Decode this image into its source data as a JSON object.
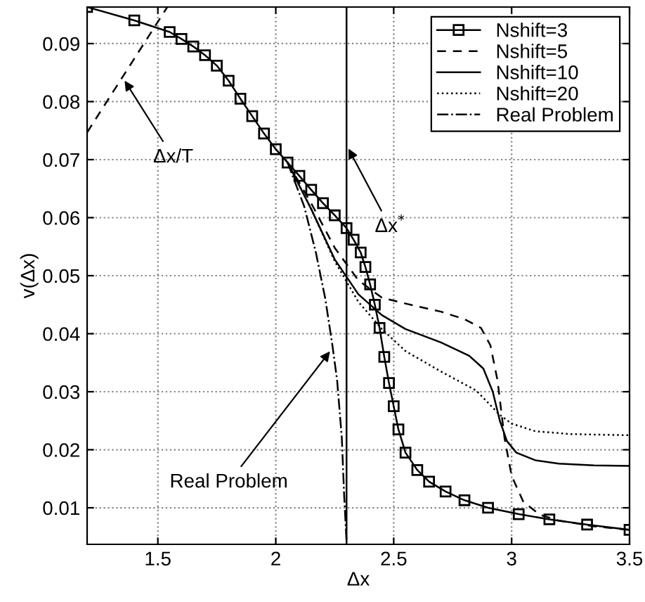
{
  "chart_data": {
    "type": "line",
    "xlabel": "Δx",
    "ylabel": "v(Δx)",
    "xlim": [
      1.2,
      3.5
    ],
    "ylim": [
      0.0037,
      0.0963
    ],
    "xticks": [
      1.5,
      2,
      2.5,
      3,
      3.5
    ],
    "yticks": [
      0.01,
      0.02,
      0.03,
      0.04,
      0.05,
      0.06,
      0.07,
      0.08,
      0.09
    ],
    "grid": true,
    "legend": "top right",
    "series": [
      {
        "name": "Nshift=3",
        "color": "#000000",
        "marker": "square",
        "line_style": "solid",
        "x": [
          1.2,
          1.4,
          1.55,
          1.6,
          1.65,
          1.7,
          1.75,
          1.8,
          1.85,
          1.9,
          1.95,
          2.0,
          2.05,
          2.1,
          2.15,
          2.2,
          2.25,
          2.3,
          2.33,
          2.36,
          2.38,
          2.4,
          2.42,
          2.44,
          2.46,
          2.48,
          2.5,
          2.52,
          2.55,
          2.6,
          2.65,
          2.72,
          2.8,
          2.9,
          3.03,
          3.16,
          3.32,
          3.5
        ],
        "values": [
          0.0963,
          0.094,
          0.092,
          0.0908,
          0.0895,
          0.088,
          0.0862,
          0.0836,
          0.0805,
          0.0775,
          0.0745,
          0.0718,
          0.0695,
          0.0672,
          0.0648,
          0.0625,
          0.0604,
          0.0582,
          0.0562,
          0.054,
          0.0515,
          0.0485,
          0.045,
          0.041,
          0.036,
          0.0315,
          0.0275,
          0.0235,
          0.0195,
          0.0165,
          0.0145,
          0.0128,
          0.0113,
          0.01,
          0.0089,
          0.008,
          0.0071,
          0.0062
        ]
      },
      {
        "name": "Nshift=5",
        "color": "#000000",
        "marker": "none",
        "line_style": "dashed",
        "x": [
          2.05,
          2.15,
          2.25,
          2.35,
          2.45,
          2.55,
          2.7,
          2.8,
          2.87,
          2.91,
          2.94,
          2.97,
          3.0,
          3.05,
          3.12,
          3.2,
          3.35,
          3.5
        ],
        "values": [
          0.0695,
          0.0625,
          0.0548,
          0.0492,
          0.0462,
          0.0452,
          0.0438,
          0.0425,
          0.041,
          0.038,
          0.032,
          0.022,
          0.0155,
          0.011,
          0.0088,
          0.0078,
          0.0068,
          0.0062
        ]
      },
      {
        "name": "Nshift=10",
        "color": "#000000",
        "marker": "none",
        "line_style": "solid",
        "x": [
          2.05,
          2.15,
          2.25,
          2.35,
          2.45,
          2.55,
          2.7,
          2.82,
          2.88,
          2.92,
          2.95,
          2.98,
          3.02,
          3.1,
          3.2,
          3.35,
          3.5
        ],
        "values": [
          0.0695,
          0.0615,
          0.0528,
          0.0468,
          0.0432,
          0.0408,
          0.0385,
          0.0362,
          0.034,
          0.03,
          0.025,
          0.0215,
          0.0195,
          0.0182,
          0.0176,
          0.0173,
          0.0172
        ]
      },
      {
        "name": "Nshift=20",
        "color": "#000000",
        "marker": "none",
        "line_style": "dotted",
        "x": [
          2.05,
          2.15,
          2.25,
          2.35,
          2.45,
          2.55,
          2.7,
          2.85,
          2.95,
          3.0,
          3.1,
          3.25,
          3.5
        ],
        "values": [
          0.0695,
          0.0615,
          0.0525,
          0.0455,
          0.0408,
          0.037,
          0.0335,
          0.0302,
          0.026,
          0.0245,
          0.0232,
          0.0227,
          0.0225
        ]
      },
      {
        "name": "Real Problem",
        "color": "#000000",
        "marker": "none",
        "line_style": "dashdot",
        "x": [
          2.05,
          2.12,
          2.17,
          2.21,
          2.24,
          2.26,
          2.28,
          2.29,
          2.3
        ],
        "values": [
          0.0695,
          0.062,
          0.054,
          0.046,
          0.038,
          0.032,
          0.022,
          0.012,
          0.0042
        ]
      },
      {
        "color": "#000000",
        "marker": "none",
        "line_style": "dashed",
        "x": [
          1.2,
          1.54
        ],
        "values": [
          0.0747,
          0.0963
        ]
      }
    ],
    "ref_lines": [
      {
        "axis": "x",
        "value": 2.3,
        "color": "#000000",
        "line_style": "solid"
      }
    ],
    "annotations": [
      {
        "text": "Δx/T",
        "x": 1.35,
        "y": 0.0842
      },
      {
        "text": "Δx$^{*}$",
        "x": 2.3,
        "y": 0.0725
      },
      {
        "text": "Real Problem",
        "x": 2.24,
        "y": 0.0375
      }
    ]
  }
}
